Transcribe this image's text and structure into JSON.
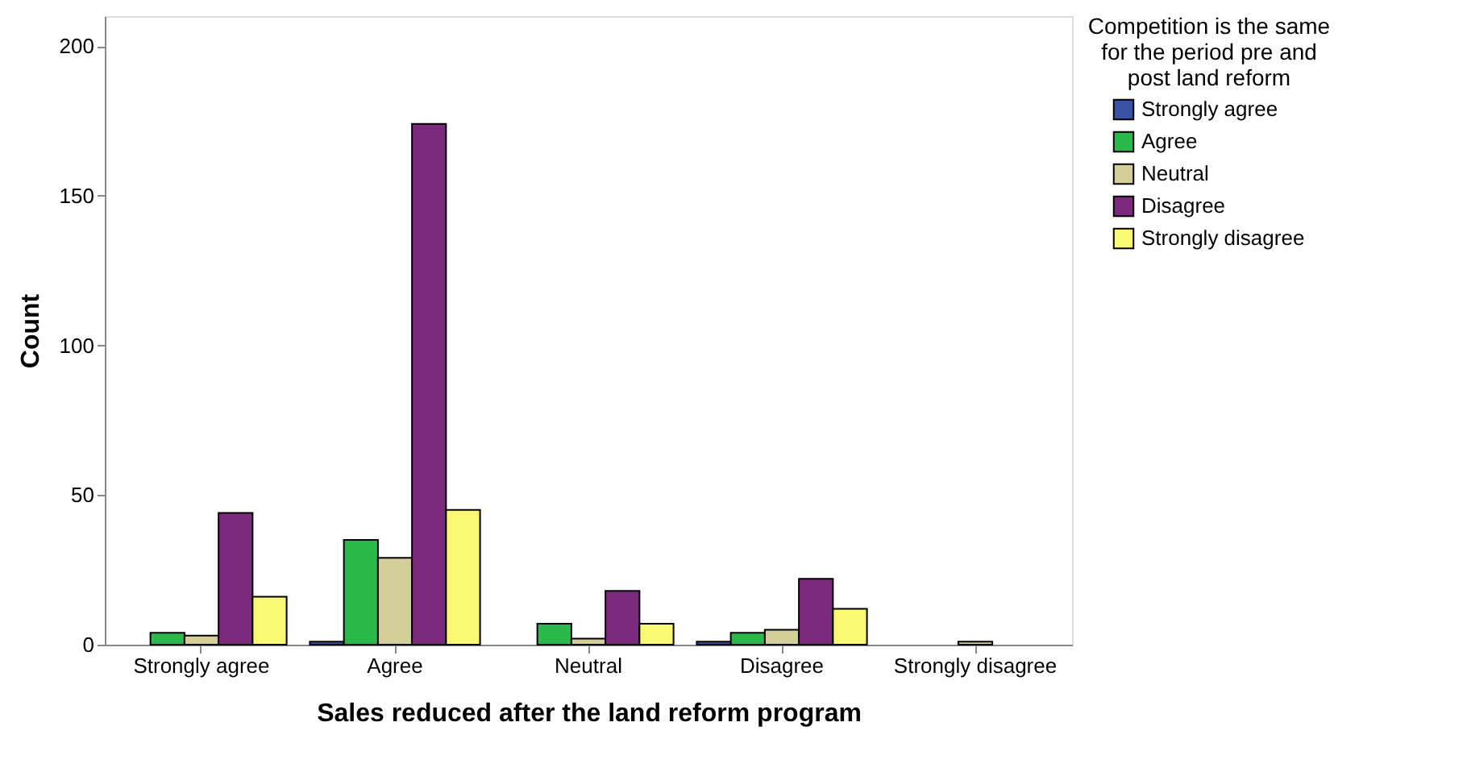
{
  "chart_data": {
    "type": "bar",
    "xlabel": "Sales reduced after the land reform program",
    "ylabel": "Count",
    "legend_title": "Competition is the same for the period pre and post land reform",
    "categories": [
      "Strongly agree",
      "Agree",
      "Neutral",
      "Disagree",
      "Strongly disagree"
    ],
    "series": [
      {
        "name": "Strongly agree",
        "color": "#3953a4",
        "values": [
          null,
          1,
          null,
          1,
          null
        ]
      },
      {
        "name": "Agree",
        "color": "#2db84b",
        "values": [
          4,
          35,
          7,
          4,
          null
        ]
      },
      {
        "name": "Neutral",
        "color": "#d3ce97",
        "values": [
          3,
          29,
          2,
          5,
          1
        ]
      },
      {
        "name": "Disagree",
        "color": "#7b2a7b",
        "values": [
          44,
          174,
          18,
          22,
          null
        ]
      },
      {
        "name": "Strongly disagree",
        "color": "#fbf873",
        "values": [
          16,
          45,
          7,
          12,
          null
        ]
      }
    ],
    "ylim": [
      0,
      210
    ],
    "yticks": [
      0,
      50,
      100,
      150,
      200
    ],
    "grid": false,
    "legend": "right"
  }
}
